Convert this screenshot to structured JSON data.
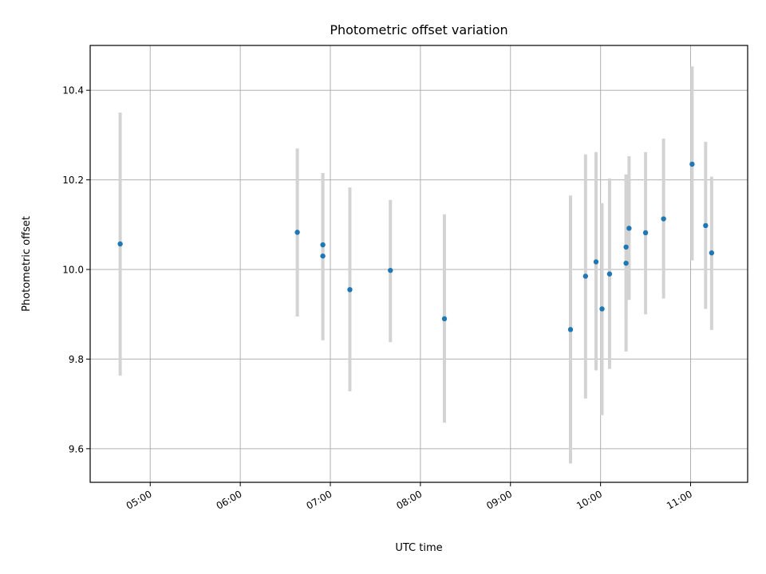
{
  "chart_data": {
    "type": "scatter",
    "title": "Photometric offset variation",
    "xlabel": "UTC time",
    "ylabel": "Photometric offset",
    "x_axis_kind": "time",
    "xlim": [
      "04:20",
      "11:38"
    ],
    "ylim": [
      9.525,
      10.5
    ],
    "x_ticks": [
      "05:00",
      "06:00",
      "07:00",
      "08:00",
      "09:00",
      "10:00",
      "11:00"
    ],
    "y_ticks": [
      9.6,
      9.8,
      10.0,
      10.2,
      10.4
    ],
    "grid": true,
    "marker_color": "#1f77b4",
    "errorbar_color": "#d3d3d3",
    "series": [
      {
        "points": [
          {
            "x": "04:40",
            "y": 10.057,
            "ylow": 9.763,
            "yhigh": 10.35
          },
          {
            "x": "06:38",
            "y": 10.083,
            "ylow": 9.895,
            "yhigh": 10.27
          },
          {
            "x": "06:55",
            "y": 10.055,
            "ylow": 9.908,
            "yhigh": 10.215
          },
          {
            "x": "06:55",
            "y": 10.03,
            "ylow": 9.842,
            "yhigh": 10.215
          },
          {
            "x": "07:13",
            "y": 9.955,
            "ylow": 9.728,
            "yhigh": 10.183
          },
          {
            "x": "07:40",
            "y": 9.998,
            "ylow": 9.838,
            "yhigh": 10.155
          },
          {
            "x": "08:16",
            "y": 9.89,
            "ylow": 9.658,
            "yhigh": 10.123
          },
          {
            "x": "09:40",
            "y": 9.866,
            "ylow": 9.567,
            "yhigh": 10.165
          },
          {
            "x": "09:50",
            "y": 9.985,
            "ylow": 9.712,
            "yhigh": 10.257
          },
          {
            "x": "09:57",
            "y": 10.017,
            "ylow": 9.775,
            "yhigh": 10.262
          },
          {
            "x": "10:01",
            "y": 9.912,
            "ylow": 9.675,
            "yhigh": 10.148
          },
          {
            "x": "10:06",
            "y": 9.99,
            "ylow": 9.778,
            "yhigh": 10.203
          },
          {
            "x": "10:17",
            "y": 10.014,
            "ylow": 9.817,
            "yhigh": 10.212
          },
          {
            "x": "10:17",
            "y": 10.05,
            "ylow": 9.887,
            "yhigh": 10.212
          },
          {
            "x": "10:19",
            "y": 10.092,
            "ylow": 9.932,
            "yhigh": 10.253
          },
          {
            "x": "10:30",
            "y": 10.082,
            "ylow": 9.9,
            "yhigh": 10.262
          },
          {
            "x": "10:42",
            "y": 10.113,
            "ylow": 9.935,
            "yhigh": 10.292
          },
          {
            "x": "11:01",
            "y": 10.235,
            "ylow": 10.02,
            "yhigh": 10.453
          },
          {
            "x": "11:10",
            "y": 10.098,
            "ylow": 9.912,
            "yhigh": 10.285
          },
          {
            "x": "11:14",
            "y": 10.037,
            "ylow": 9.865,
            "yhigh": 10.207
          }
        ]
      }
    ]
  }
}
